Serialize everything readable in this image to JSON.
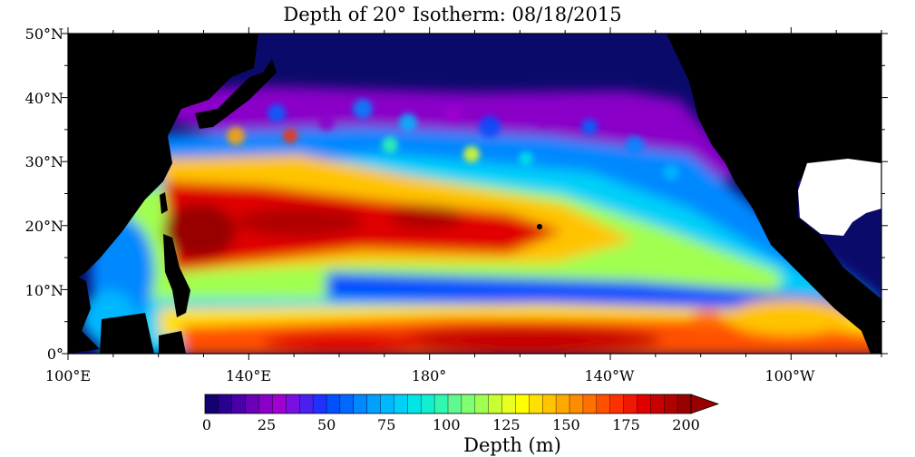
{
  "map": {
    "title": "Depth of 20° Isotherm: 08/18/2015",
    "lat_labels": [
      "50°N",
      "40°N",
      "30°N",
      "20°N",
      "10°N",
      "0°"
    ],
    "lon_labels": [
      "100°E",
      "140°E",
      "180°",
      "140°W",
      "100°W"
    ],
    "colorbar": {
      "ticks": [
        "0",
        "25",
        "50",
        "75",
        "100",
        "125",
        "150",
        "175",
        "200"
      ],
      "label": "Depth (m)",
      "colors": [
        "#14006e",
        "#2a0090",
        "#4a00a8",
        "#6a00b8",
        "#8a00c8",
        "#a000d0",
        "#7a10e0",
        "#4a20f0",
        "#2030ff",
        "#0050ff",
        "#0068ff",
        "#0088ff",
        "#00a0ff",
        "#00b8ff",
        "#00d0f8",
        "#00e6e6",
        "#10f0d0",
        "#30f8b0",
        "#60f890",
        "#80ff70",
        "#a0ff50",
        "#c8ff30",
        "#e8ff20",
        "#ffff00",
        "#ffe000",
        "#ffc400",
        "#ffa800",
        "#ff8c00",
        "#ff7000",
        "#ff5000",
        "#ff3000",
        "#f01800",
        "#e00000",
        "#c80000",
        "#b00000",
        "#980000"
      ]
    },
    "colors": {
      "land": "#000000",
      "shallow": "#0a0a6a",
      "outside_domain": "#ffffff"
    }
  }
}
